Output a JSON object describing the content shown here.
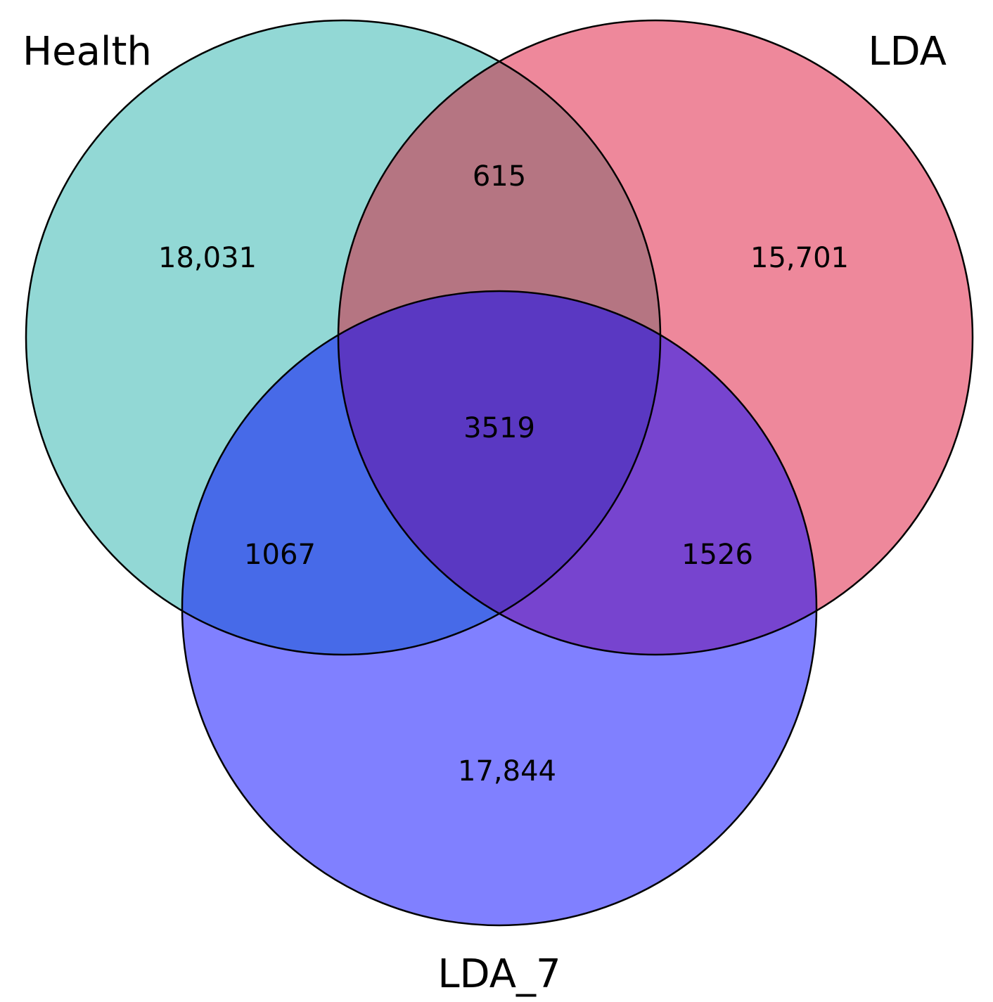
{
  "sets": [
    {
      "key": "health",
      "label": "Health",
      "color": "#92d8d5"
    },
    {
      "key": "lda",
      "label": "LDA",
      "color": "#ee889b"
    },
    {
      "key": "lda7",
      "label": "LDA_7",
      "color": "#8080ff"
    }
  ],
  "regions": {
    "health_only": {
      "value": "18,031",
      "color": "#92d8d5"
    },
    "lda_only": {
      "value": "15,701",
      "color": "#ee889b"
    },
    "lda7_only": {
      "value": "17,844",
      "color": "#8080ff"
    },
    "health_lda": {
      "value": "615",
      "color": "#b57582"
    },
    "health_lda7": {
      "value": "1067",
      "color": "#476ae8"
    },
    "lda_lda7": {
      "value": "1526",
      "color": "#7744cf"
    },
    "all_three": {
      "value": "3519",
      "color": "#5a38c2"
    }
  }
}
